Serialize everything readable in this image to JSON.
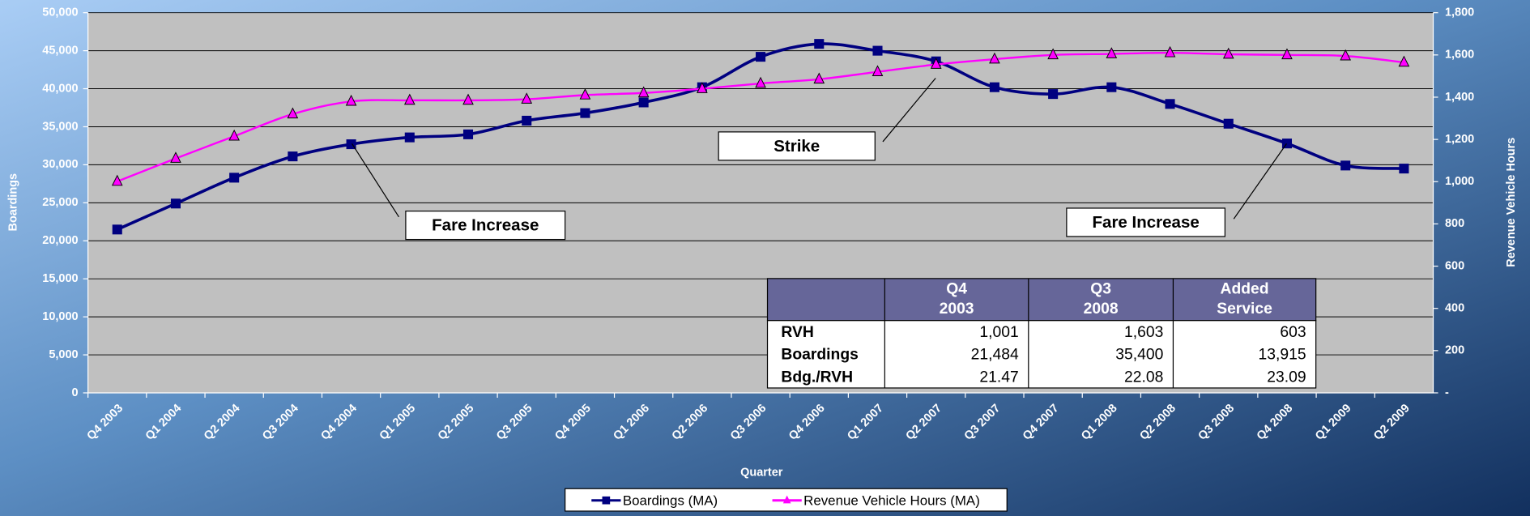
{
  "chart_data": {
    "type": "line",
    "x_label": "Quarter",
    "y_label": "Boardings",
    "y2_label": "Revenue Vehicle Hours",
    "categories": [
      "Q4 2003",
      "Q1 2004",
      "Q2 2004",
      "Q3 2004",
      "Q4 2004",
      "Q1 2005",
      "Q2 2005",
      "Q3 2005",
      "Q4 2005",
      "Q1 2006",
      "Q2 2006",
      "Q3 2006",
      "Q4 2006",
      "Q1 2007",
      "Q2 2007",
      "Q3 2007",
      "Q4 2007",
      "Q1 2008",
      "Q2 2008",
      "Q3 2008",
      "Q4 2008",
      "Q1 2009",
      "Q2 2009"
    ],
    "series": [
      {
        "name": "Boardings (MA)",
        "color": "#000080",
        "marker": "square",
        "values": [
          21484,
          24900,
          28300,
          31100,
          32700,
          33600,
          34000,
          35800,
          36800,
          38200,
          40200,
          44200,
          45900,
          45000,
          43600,
          40200,
          39300,
          40200,
          38000,
          35400,
          32800,
          29900,
          29500
        ]
      },
      {
        "name": "Revenue Vehicle Hours (MA)",
        "color": "#ff00ff",
        "marker": "triangle",
        "axis": "y2",
        "values": [
          1001,
          1110,
          1215,
          1320,
          1380,
          1385,
          1385,
          1390,
          1410,
          1420,
          1440,
          1465,
          1485,
          1520,
          1555,
          1580,
          1600,
          1605,
          1610,
          1603,
          1600,
          1595,
          1565
        ]
      }
    ],
    "ylim": [
      0,
      50000
    ],
    "yticks": [
      0,
      {
        "value": 5000,
        "label": "5,000"
      },
      {
        "value": 10000,
        "label": "10,000"
      },
      {
        "value": 15000,
        "label": "15,000"
      },
      {
        "value": 20000,
        "label": "20,000"
      },
      {
        "value": 25000,
        "label": "25,000"
      },
      {
        "value": 30000,
        "label": "30,000"
      },
      {
        "value": 35000,
        "label": "35,000"
      },
      {
        "value": 40000,
        "label": "40,000"
      },
      {
        "value": 45000,
        "label": "45,000"
      },
      {
        "value": 50000,
        "label": "50,000"
      }
    ],
    "y2lim": [
      0,
      1800
    ],
    "y2ticks": [
      {
        "value": 0,
        "label": "-"
      },
      200,
      400,
      600,
      800,
      {
        "value": 1000,
        "label": "1,000"
      },
      {
        "value": 1200,
        "label": "1,200"
      },
      {
        "value": 1400,
        "label": "1,400"
      },
      {
        "value": 1600,
        "label": "1,600"
      },
      {
        "value": 1800,
        "label": "1,800"
      }
    ],
    "grid": true,
    "legend": "bottom",
    "annotations": [
      {
        "text": "Fare Increase",
        "category": 4
      },
      {
        "text": "Strike",
        "category": 14
      },
      {
        "text": "Fare Increase",
        "category": 20
      }
    ],
    "table": {
      "header": [
        "Q4 2003",
        "Q3 2008",
        "Added Service"
      ],
      "rows": [
        [
          "RVH",
          "1,001",
          "1,603",
          "603"
        ],
        [
          "Boardings",
          "21,484",
          "35,400",
          "13,915"
        ],
        [
          "Bdg./RVH",
          "21.47",
          "22.08",
          "23.09"
        ]
      ]
    }
  }
}
